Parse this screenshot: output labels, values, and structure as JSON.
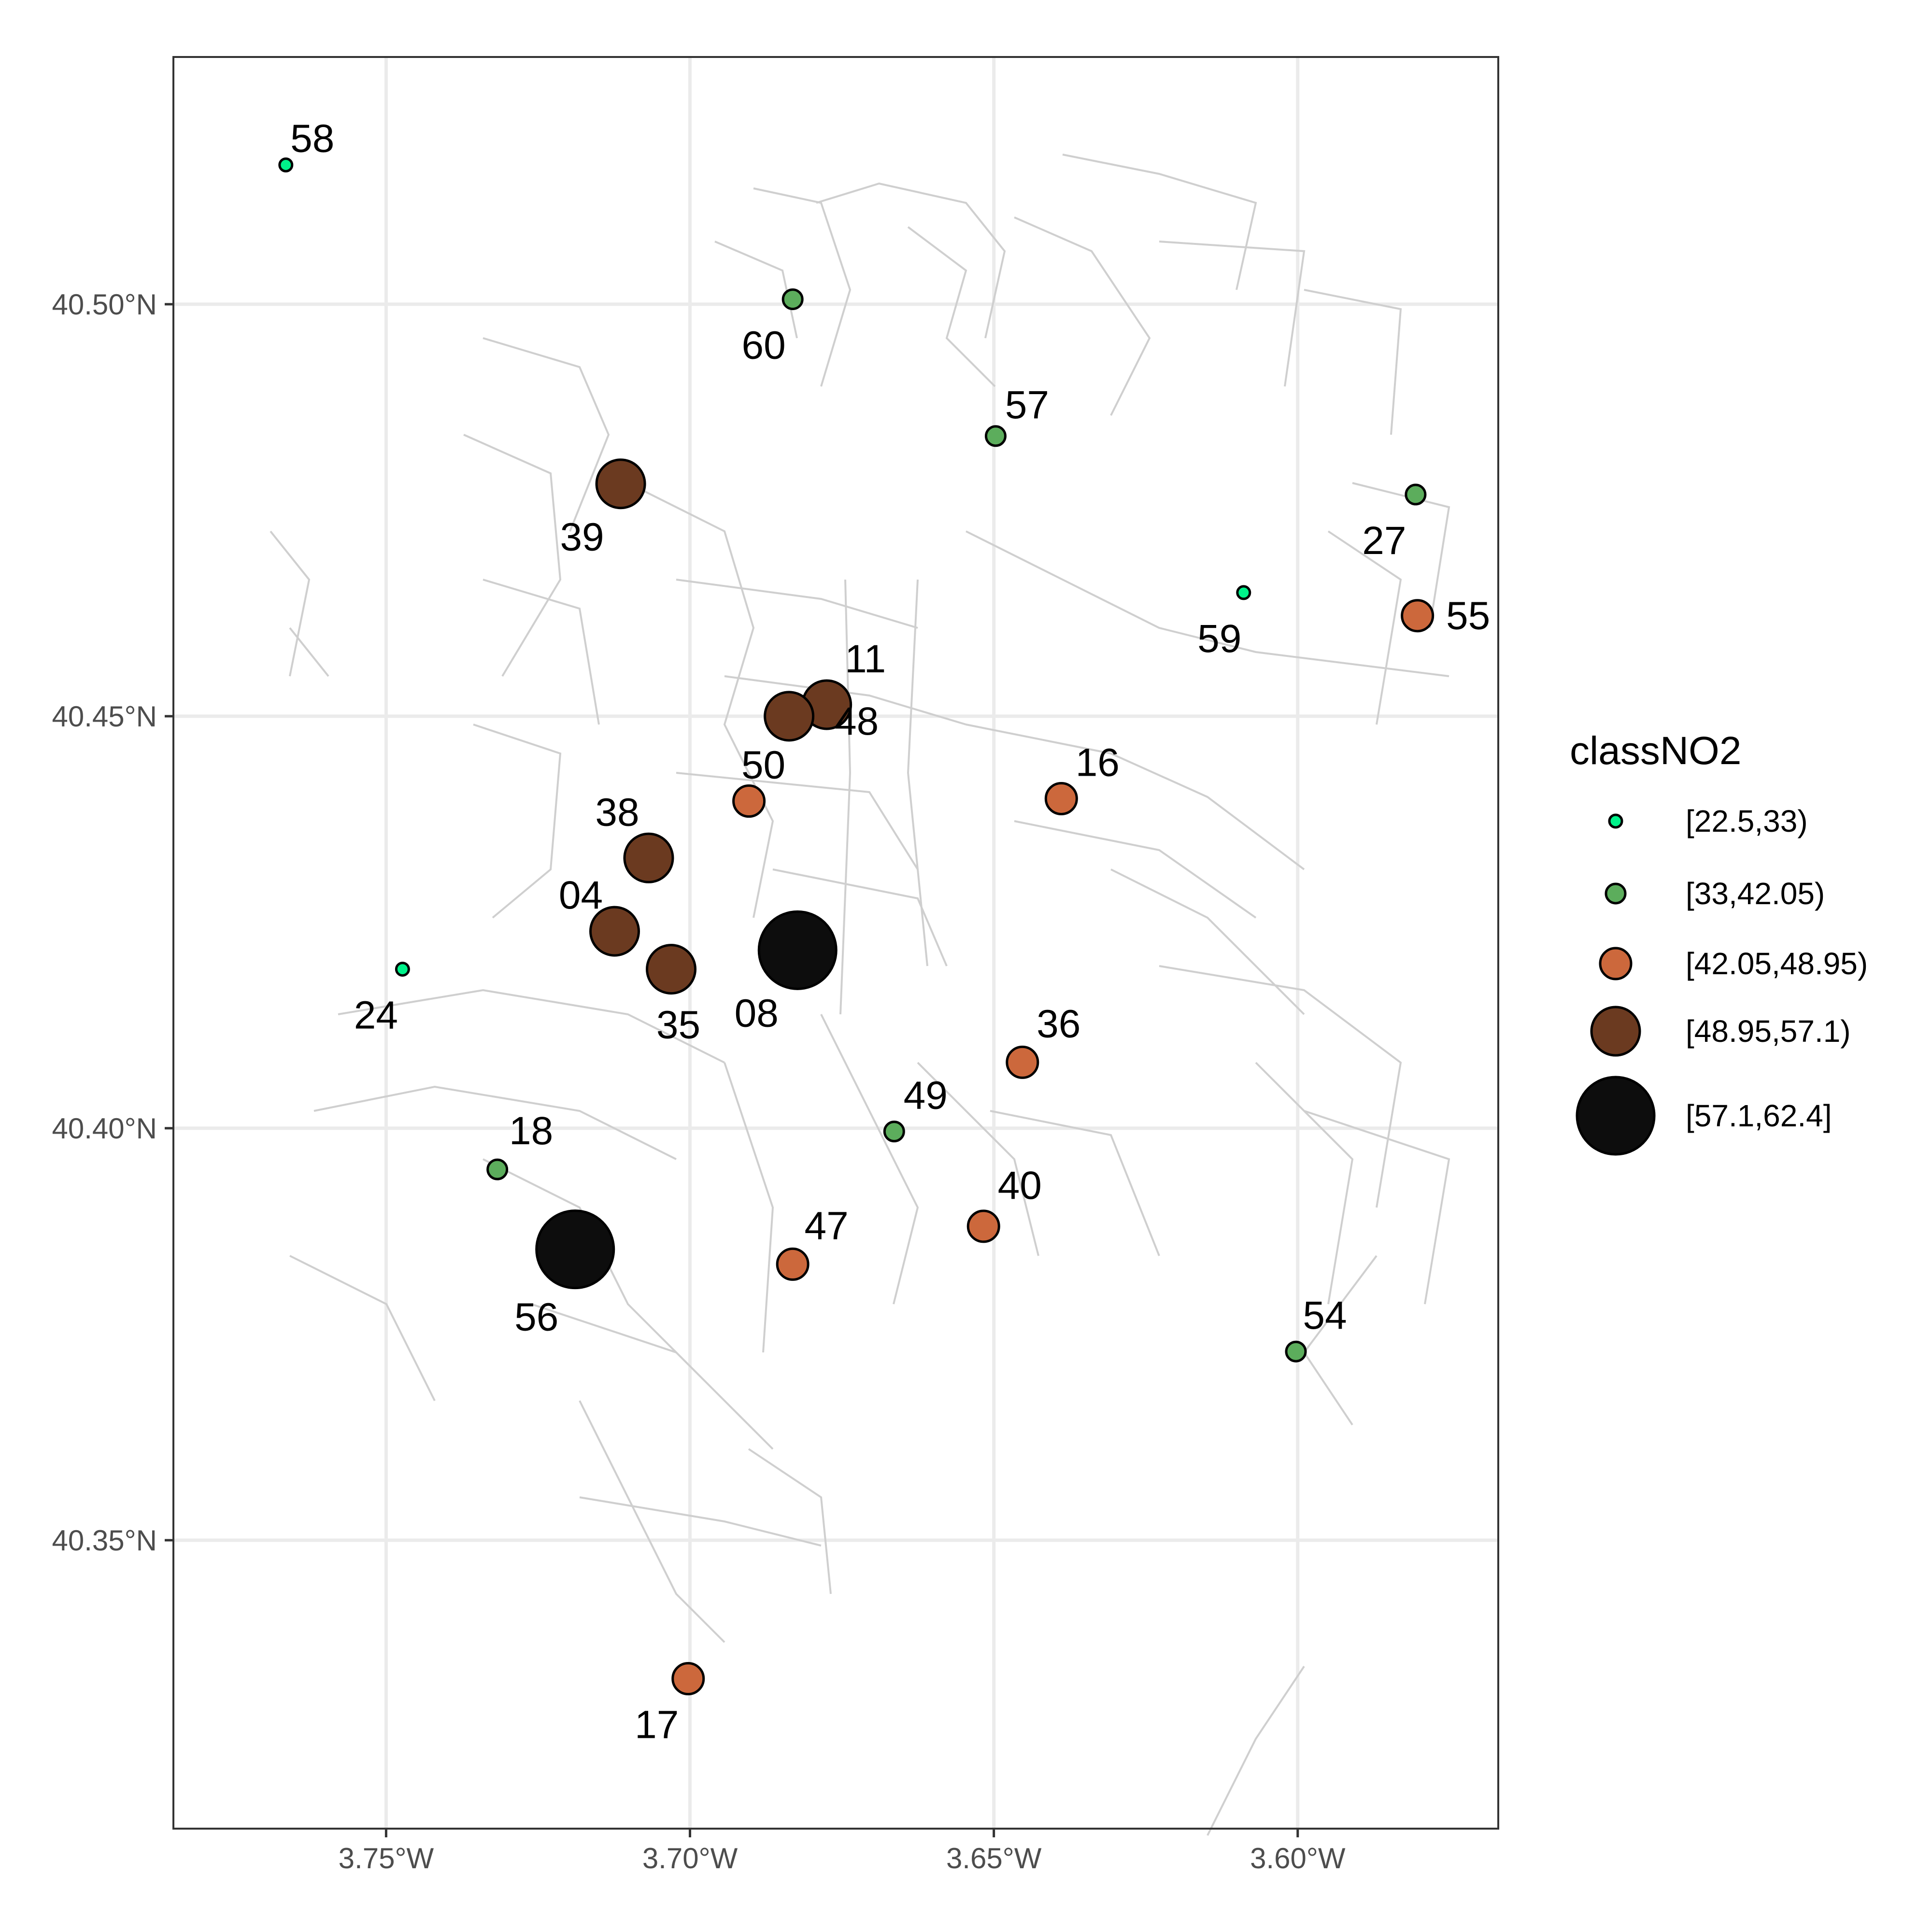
{
  "chart_data": {
    "type": "scatter",
    "title": "",
    "xlabel": "",
    "ylabel": "",
    "xlim": [
      -3.785,
      -3.567
    ],
    "ylim": [
      40.315,
      40.53
    ],
    "x_ticks": [
      {
        "value": -3.75,
        "label": "3.75°W"
      },
      {
        "value": -3.7,
        "label": "3.70°W"
      },
      {
        "value": -3.65,
        "label": "3.65°W"
      },
      {
        "value": -3.6,
        "label": "3.60°W"
      }
    ],
    "y_ticks": [
      {
        "value": 40.35,
        "label": "40.35°N"
      },
      {
        "value": 40.4,
        "label": "40.40°N"
      },
      {
        "value": 40.45,
        "label": "40.45°N"
      },
      {
        "value": 40.5,
        "label": "40.50°N"
      }
    ],
    "grid": true,
    "legend": {
      "title": "classNO2",
      "position": "right",
      "classes": [
        {
          "label": "[22.5,33)",
          "color": "#00f28a"
        },
        {
          "label": "[33,42.05)",
          "color": "#5cad5c"
        },
        {
          "label": "[42.05,48.95)",
          "color": "#cc683c"
        },
        {
          "label": "[48.95,57.1)",
          "color": "#6b3a20"
        },
        {
          "label": "[57.1,62.4]",
          "color": "#0d0d0d"
        }
      ]
    },
    "points": [
      {
        "id": "58",
        "lon": -3.7665,
        "lat": 40.5169,
        "class": 0
      },
      {
        "id": "60",
        "lon": -3.6831,
        "lat": 40.5006,
        "class": 1
      },
      {
        "id": "57",
        "lon": -3.6497,
        "lat": 40.484,
        "class": 1
      },
      {
        "id": "39",
        "lon": -3.7114,
        "lat": 40.4782,
        "class": 3
      },
      {
        "id": "27",
        "lon": -3.5806,
        "lat": 40.4769,
        "class": 1
      },
      {
        "id": "59",
        "lon": -3.6089,
        "lat": 40.465,
        "class": 0
      },
      {
        "id": "55",
        "lon": -3.5803,
        "lat": 40.4622,
        "class": 2
      },
      {
        "id": "11",
        "lon": -3.6775,
        "lat": 40.4514,
        "class": 3
      },
      {
        "id": "50",
        "lon": -3.6903,
        "lat": 40.4397,
        "class": 2
      },
      {
        "id": "16",
        "lon": -3.6389,
        "lat": 40.44,
        "class": 2
      },
      {
        "id": "38",
        "lon": -3.7068,
        "lat": 40.4328,
        "class": 3
      },
      {
        "id": "48",
        "lon": -3.6837,
        "lat": 40.45,
        "class": 3
      },
      {
        "id": "04",
        "lon": -3.7124,
        "lat": 40.4239,
        "class": 3
      },
      {
        "id": "08",
        "lon": -3.6823,
        "lat": 40.4216,
        "class": 4
      },
      {
        "id": "24",
        "lon": -3.7473,
        "lat": 40.4193,
        "class": 0
      },
      {
        "id": "35",
        "lon": -3.7031,
        "lat": 40.4193,
        "class": 3
      },
      {
        "id": "36",
        "lon": -3.6453,
        "lat": 40.408,
        "class": 2
      },
      {
        "id": "49",
        "lon": -3.6664,
        "lat": 40.3996,
        "class": 1
      },
      {
        "id": "18",
        "lon": -3.7317,
        "lat": 40.395,
        "class": 1
      },
      {
        "id": "40",
        "lon": -3.6517,
        "lat": 40.3881,
        "class": 2
      },
      {
        "id": "56",
        "lon": -3.7189,
        "lat": 40.3853,
        "class": 4
      },
      {
        "id": "47",
        "lon": -3.6831,
        "lat": 40.3835,
        "class": 2
      },
      {
        "id": "54",
        "lon": -3.6003,
        "lat": 40.3729,
        "class": 1
      },
      {
        "id": "17",
        "lon": -3.7003,
        "lat": 40.3332,
        "class": 2
      }
    ]
  }
}
